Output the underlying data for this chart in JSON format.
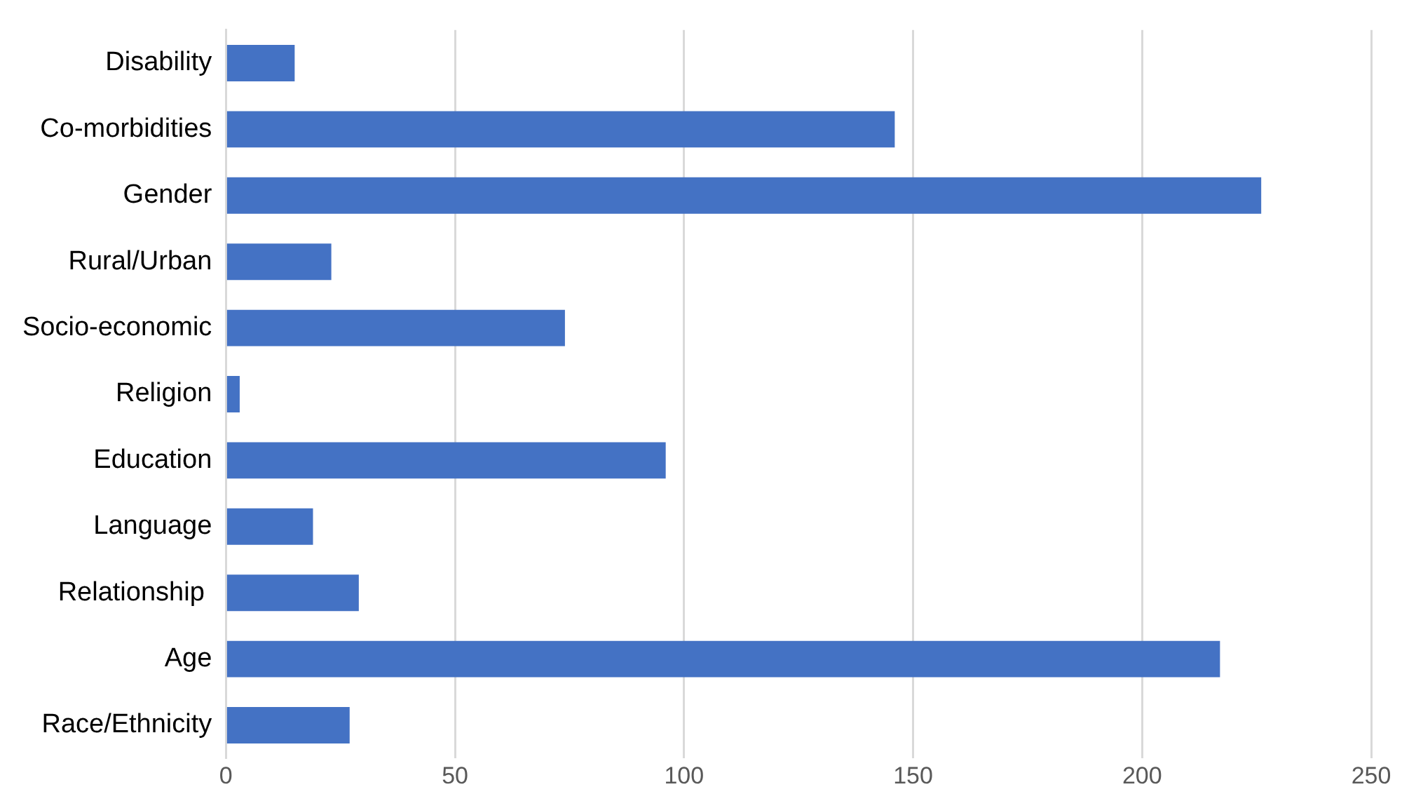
{
  "chart_data": {
    "type": "bar",
    "orientation": "horizontal",
    "categories": [
      "Disability",
      "Co-morbidities",
      "Gender",
      "Rural/Urban",
      "Socio-economic",
      "Religion",
      "Education",
      "Language",
      "Relationship ",
      "Age",
      "Race/Ethnicity"
    ],
    "values": [
      15,
      146,
      226,
      23,
      74,
      3,
      96,
      19,
      29,
      217,
      27
    ],
    "color": "#4472c4",
    "xlim": [
      0,
      250
    ],
    "xticks": [
      0,
      50,
      100,
      150,
      200,
      250
    ],
    "grid": "x",
    "legend": false
  }
}
